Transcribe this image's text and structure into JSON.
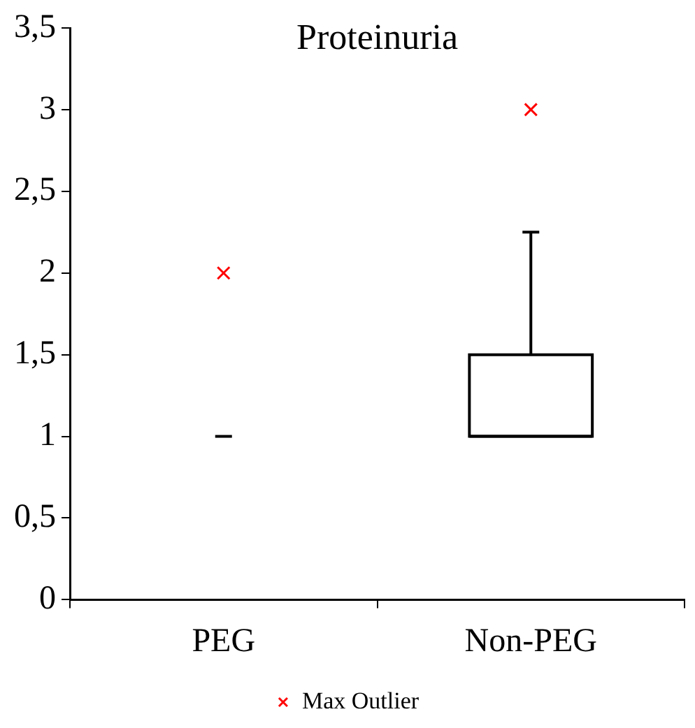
{
  "chart_data": {
    "type": "box",
    "title": "Proteinuria",
    "categories": [
      "PEG",
      "Non-PEG"
    ],
    "boxes": [
      {
        "low": 1,
        "q1": 1,
        "median": 1,
        "q3": 1,
        "high": 1
      },
      {
        "low": 1,
        "q1": 1,
        "median": 1,
        "q3": 1.5,
        "high": 2.25
      }
    ],
    "series": [
      {
        "type": "scatter",
        "name": "Max Outlier",
        "color": "#ff0000",
        "x": [
          "PEG",
          "Non-PEG"
        ],
        "values": [
          2,
          3
        ]
      }
    ],
    "ylim": [
      0,
      3.5
    ],
    "yticks": [
      0,
      {
        "value": 0.5,
        "label": "0,5"
      },
      1,
      {
        "value": 1.5,
        "label": "1,5"
      },
      2,
      {
        "value": 2.5,
        "label": "2,5"
      },
      3,
      {
        "value": 3.5,
        "label": "3,5"
      }
    ],
    "color": "#000000",
    "marker": "cross",
    "legend": "bottom",
    "grid": false
  }
}
